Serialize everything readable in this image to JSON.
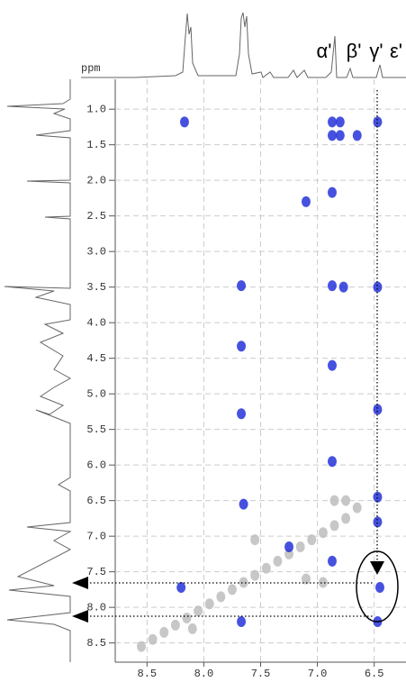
{
  "chart_data": {
    "type": "scatter",
    "ylabel": "ppm",
    "annotations": [
      "α'",
      "β'",
      "γ'",
      "ε'"
    ],
    "xlim": [
      8.78,
      6.22
    ],
    "ylim": [
      0.58,
      8.77
    ],
    "xticks": [
      8.5,
      {
        "value": 8,
        "label": "8.0"
      },
      7.5,
      {
        "value": 7,
        "label": "7.0"
      },
      6.5
    ],
    "yticks": [
      {
        "value": 1,
        "label": "1.0"
      },
      1.5,
      {
        "value": 2,
        "label": "2.0"
      },
      2.5,
      {
        "value": 3,
        "label": "3.0"
      },
      3.5,
      {
        "value": 4,
        "label": "4.0"
      },
      4.5,
      {
        "value": 5,
        "label": "5.0"
      },
      5.5,
      {
        "value": 6,
        "label": "6.0"
      },
      6.5,
      {
        "value": 7,
        "label": "7.0"
      },
      7.5,
      {
        "value": 8,
        "label": "8.0"
      },
      8.5
    ],
    "grid": true,
    "series": [
      {
        "color": "#bdbdbd",
        "x": [
          8.55,
          8.45,
          8.35,
          8.25,
          8.15,
          8.05,
          7.95,
          7.85,
          7.75,
          7.65,
          7.55,
          7.45,
          7.35,
          7.25,
          7.15,
          7.05,
          6.95,
          6.85,
          6.75,
          6.65,
          7.55,
          7.1,
          6.95,
          6.75,
          6.85,
          8.1
        ],
        "values": [
          8.55,
          8.45,
          8.35,
          8.25,
          8.15,
          8.05,
          7.95,
          7.85,
          7.75,
          7.65,
          7.55,
          7.45,
          7.35,
          7.25,
          7.15,
          7.05,
          6.95,
          6.85,
          6.75,
          6.6,
          7.05,
          7.6,
          7.65,
          6.5,
          6.5,
          8.3
        ]
      },
      {
        "color": "#2633d9",
        "x": [
          8.17,
          6.87,
          6.8,
          6.47,
          6.87,
          6.8,
          6.65,
          6.87,
          7.1,
          6.87,
          6.77,
          6.47,
          7.67,
          7.67,
          6.87,
          6.47,
          7.67,
          6.87,
          6.47,
          6.47,
          6.87,
          8.2,
          6.45,
          7.67,
          6.47,
          7.65,
          7.25
        ],
        "values": [
          1.18,
          1.18,
          1.18,
          1.18,
          1.37,
          1.37,
          1.37,
          2.17,
          2.3,
          3.48,
          3.5,
          3.5,
          3.48,
          4.33,
          4.6,
          5.22,
          5.28,
          5.95,
          6.45,
          6.8,
          7.35,
          7.72,
          7.72,
          8.2,
          8.2,
          6.55,
          7.15
        ]
      }
    ]
  }
}
